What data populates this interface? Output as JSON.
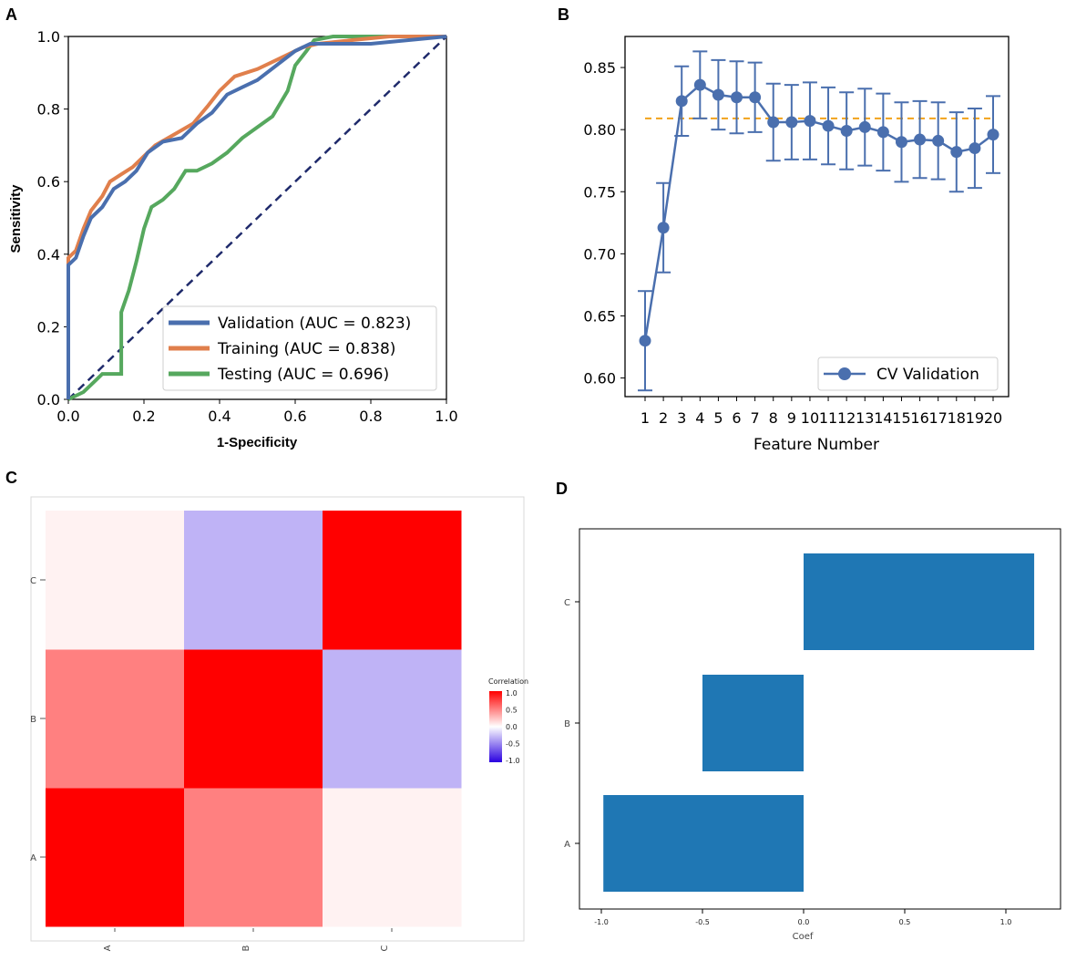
{
  "panel_letters": {
    "a": "A",
    "b": "B",
    "c": "C",
    "d": "D"
  },
  "chart_data": [
    {
      "panel": "A",
      "type": "line",
      "xlabel": "1-Specificity",
      "ylabel": "Sensitivity",
      "xlim": [
        0,
        1
      ],
      "ylim": [
        0,
        1
      ],
      "ticks": [
        "0.0",
        "0.2",
        "0.4",
        "0.6",
        "0.8",
        "1.0"
      ],
      "tick_values": [
        0,
        0.2,
        0.4,
        0.6,
        0.8,
        1.0
      ],
      "colors": {
        "validation": "#4a6fae",
        "training": "#e07f4c",
        "testing": "#56a85e",
        "diagonal": "#1f2a6b"
      },
      "series": [
        {
          "key": "validation",
          "name": "Validation (AUC = 0.823)",
          "points": [
            [
              0,
              0
            ],
            [
              0,
              0.37
            ],
            [
              0.02,
              0.39
            ],
            [
              0.04,
              0.45
            ],
            [
              0.06,
              0.5
            ],
            [
              0.09,
              0.53
            ],
            [
              0.12,
              0.58
            ],
            [
              0.15,
              0.6
            ],
            [
              0.18,
              0.63
            ],
            [
              0.21,
              0.68
            ],
            [
              0.25,
              0.71
            ],
            [
              0.3,
              0.72
            ],
            [
              0.34,
              0.76
            ],
            [
              0.38,
              0.79
            ],
            [
              0.42,
              0.84
            ],
            [
              0.46,
              0.86
            ],
            [
              0.5,
              0.88
            ],
            [
              0.55,
              0.92
            ],
            [
              0.6,
              0.96
            ],
            [
              0.64,
              0.98
            ],
            [
              0.7,
              0.98
            ],
            [
              0.8,
              0.98
            ],
            [
              0.9,
              0.99
            ],
            [
              1.0,
              1.0
            ]
          ]
        },
        {
          "key": "training",
          "name": "Training (AUC = 0.838)",
          "points": [
            [
              0,
              0
            ],
            [
              0,
              0.39
            ],
            [
              0.02,
              0.41
            ],
            [
              0.04,
              0.47
            ],
            [
              0.06,
              0.52
            ],
            [
              0.09,
              0.56
            ],
            [
              0.11,
              0.6
            ],
            [
              0.14,
              0.62
            ],
            [
              0.17,
              0.64
            ],
            [
              0.2,
              0.67
            ],
            [
              0.23,
              0.7
            ],
            [
              0.28,
              0.73
            ],
            [
              0.33,
              0.76
            ],
            [
              0.37,
              0.81
            ],
            [
              0.4,
              0.85
            ],
            [
              0.44,
              0.89
            ],
            [
              0.5,
              0.91
            ],
            [
              0.56,
              0.94
            ],
            [
              0.62,
              0.97
            ],
            [
              0.66,
              0.98
            ],
            [
              0.75,
              0.99
            ],
            [
              0.85,
              1.0
            ],
            [
              1.0,
              1.0
            ]
          ]
        },
        {
          "key": "testing",
          "name": "Testing (AUC = 0.696)",
          "points": [
            [
              0,
              0
            ],
            [
              0.04,
              0.02
            ],
            [
              0.07,
              0.05
            ],
            [
              0.09,
              0.07
            ],
            [
              0.14,
              0.07
            ],
            [
              0.14,
              0.24
            ],
            [
              0.16,
              0.3
            ],
            [
              0.18,
              0.38
            ],
            [
              0.2,
              0.47
            ],
            [
              0.22,
              0.53
            ],
            [
              0.25,
              0.55
            ],
            [
              0.28,
              0.58
            ],
            [
              0.31,
              0.63
            ],
            [
              0.34,
              0.63
            ],
            [
              0.38,
              0.65
            ],
            [
              0.42,
              0.68
            ],
            [
              0.46,
              0.72
            ],
            [
              0.5,
              0.75
            ],
            [
              0.54,
              0.78
            ],
            [
              0.58,
              0.85
            ],
            [
              0.6,
              0.92
            ],
            [
              0.63,
              0.96
            ],
            [
              0.65,
              0.99
            ],
            [
              0.7,
              1.0
            ],
            [
              1.0,
              1.0
            ]
          ]
        }
      ]
    },
    {
      "panel": "B",
      "type": "line",
      "xlabel": "Feature Number",
      "ylabel": "",
      "ylim": [
        0.585,
        0.875
      ],
      "yticks": [
        "0.60",
        "0.65",
        "0.70",
        "0.75",
        "0.80",
        "0.85"
      ],
      "ytick_values": [
        0.6,
        0.65,
        0.7,
        0.75,
        0.8,
        0.85
      ],
      "categories": [
        "1",
        "2",
        "3",
        "4",
        "5",
        "6",
        "7",
        "8",
        "9",
        "10",
        "11",
        "12",
        "13",
        "14",
        "15",
        "16",
        "17",
        "18",
        "19",
        "20"
      ],
      "values": [
        0.63,
        0.721,
        0.823,
        0.836,
        0.828,
        0.826,
        0.826,
        0.806,
        0.806,
        0.807,
        0.803,
        0.799,
        0.802,
        0.798,
        0.79,
        0.792,
        0.791,
        0.782,
        0.785,
        0.796
      ],
      "errors": [
        0.04,
        0.036,
        0.028,
        0.027,
        0.028,
        0.029,
        0.028,
        0.031,
        0.03,
        0.031,
        0.031,
        0.031,
        0.031,
        0.031,
        0.032,
        0.031,
        0.031,
        0.032,
        0.032,
        0.031
      ],
      "reference_line": 0.809,
      "legend": "CV Validation",
      "colors": {
        "series": "#4a6fae",
        "reference": "#f2a31b"
      }
    },
    {
      "panel": "C",
      "type": "heatmap",
      "x_categories": [
        "A",
        "B",
        "C"
      ],
      "y_categories": [
        "A",
        "B",
        "C"
      ],
      "matrix": [
        [
          1.0,
          0.5,
          0.05
        ],
        [
          0.5,
          1.0,
          -0.3
        ],
        [
          0.05,
          -0.3,
          1.0
        ]
      ],
      "legend_title": "Correlation",
      "legend_ticks": [
        "1.0",
        "0.5",
        "0.0",
        "-0.5",
        "-1.0"
      ],
      "colors": {
        "positive": "#ff0000",
        "neutral": "#ffffff",
        "negative": "#2a00e0"
      }
    },
    {
      "panel": "D",
      "type": "bar",
      "orientation": "horizontal",
      "xlabel": "Coef",
      "categories": [
        "A",
        "B",
        "C"
      ],
      "values": [
        -0.99,
        -0.5,
        1.14
      ],
      "xlim": [
        -1.05,
        1.25
      ],
      "xticks": [
        "-1.0",
        "-0.5",
        "0.0",
        "0.5",
        "1.0"
      ],
      "xtick_values": [
        -1.0,
        -0.5,
        0.0,
        0.5,
        1.0
      ],
      "colors": {
        "bar": "#1f77b4"
      }
    }
  ]
}
